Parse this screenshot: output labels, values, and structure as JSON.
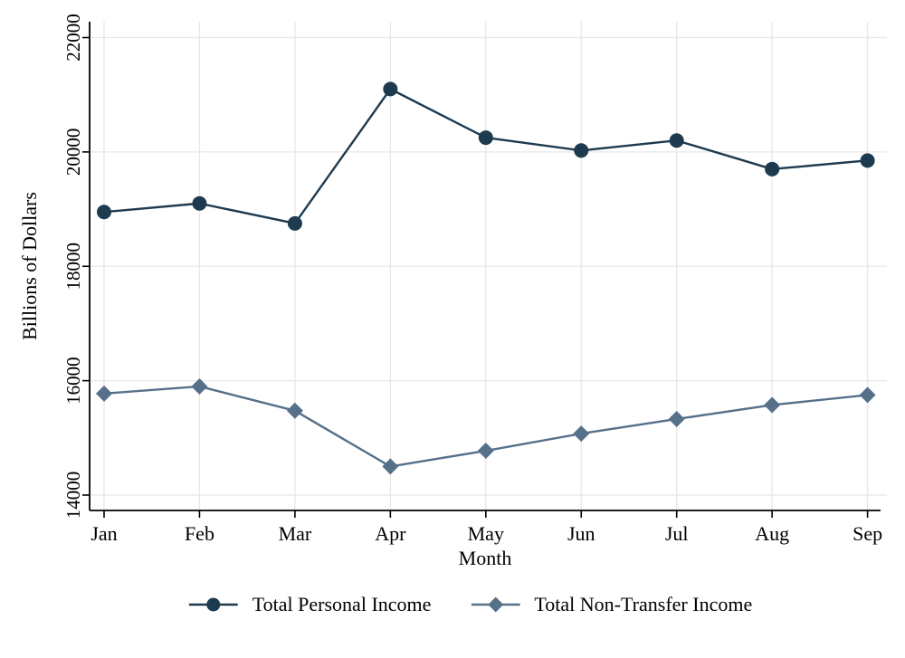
{
  "chart_data": {
    "type": "line",
    "title": "",
    "xlabel": "Month",
    "ylabel": "Billions of Dollars",
    "categories": [
      "Jan",
      "Feb",
      "Mar",
      "Apr",
      "May",
      "Jun",
      "Jul",
      "Aug",
      "Sep"
    ],
    "yticks": [
      14000,
      16000,
      18000,
      20000,
      22000
    ],
    "ylim": [
      13730,
      22280
    ],
    "grid": true,
    "legend_position": "bottom",
    "series": [
      {
        "name": "Total Personal Income",
        "marker": "circle",
        "color": "#1d3a4f",
        "values": [
          18950,
          19100,
          18750,
          21100,
          20250,
          20025,
          20200,
          19700,
          19850
        ]
      },
      {
        "name": "Total Non-Transfer Income",
        "marker": "diamond",
        "color": "#57708a",
        "values": [
          15775,
          15900,
          15475,
          14500,
          14775,
          15075,
          15330,
          15575,
          15750
        ]
      }
    ]
  },
  "colors": {
    "grid": "#e7e7e7",
    "axis": "#000000",
    "background": "#ffffff",
    "text": "#000000"
  }
}
